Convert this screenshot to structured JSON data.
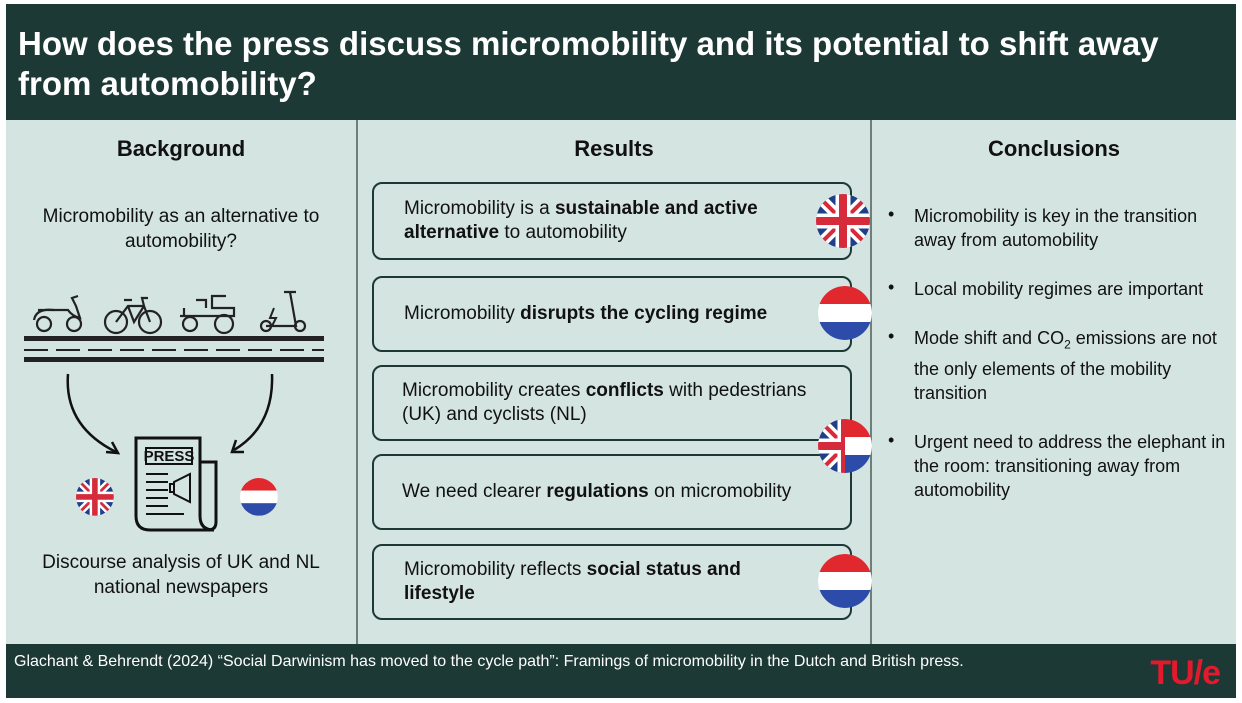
{
  "header": {
    "title": "How does the press discuss micromobility and its potential to shift away from automobility?"
  },
  "background": {
    "title": "Background",
    "question": "Micromobility  as an alternative to automobility?",
    "press_label": "PRESS",
    "analysis": "Discourse analysis of UK and NL national newspapers"
  },
  "results": {
    "title": "Results",
    "items": [
      {
        "pre": "Micromobility is a ",
        "bold": "sustainable and active alternative",
        "post": " to automobility",
        "flag": "uk"
      },
      {
        "pre": "Micromobility  ",
        "bold": "disrupts the cycling regime",
        "post": "",
        "flag": "nl"
      },
      {
        "pre": "Micromobility  creates ",
        "bold": "conflicts",
        "post": " with pedestrians (UK) and cyclists (NL)",
        "flag": "uk-nl"
      },
      {
        "pre": "We need clearer ",
        "bold": "regulations",
        "post": " on micromobility",
        "flag": ""
      },
      {
        "pre": "Micromobility  reflects ",
        "bold": "social status and lifestyle",
        "post": "",
        "flag": "nl"
      }
    ]
  },
  "conclusions": {
    "title": "Conclusions",
    "items": [
      {
        "text": "Micromobility is key in the transition away from automobility"
      },
      {
        "text": "Local mobility regimes are important"
      },
      {
        "pre": "Mode shift and CO",
        "sub": "2",
        "post": " emissions are not the only elements of the mobility transition"
      },
      {
        "text": "Urgent need to address the elephant in the room: transitioning away from automobility"
      }
    ]
  },
  "footer": {
    "citation": "Glachant & Behrendt (2024) “Social Darwinism has moved to the cycle path”: Framings of micromobility in the Dutch and British press.",
    "logo": "TU/e"
  },
  "colors": {
    "dark_teal": "#1d3935",
    "panel": "#d4e4e1",
    "logo_red": "#e3192c",
    "nl_red": "#e0282e",
    "nl_blue": "#2d4ba8",
    "uk_blue": "#1f3f8a"
  },
  "icons": [
    "scooter-icon",
    "bicycle-icon",
    "mobility-scooter-icon",
    "e-scooter-icon",
    "newspaper-icon",
    "uk-flag-icon",
    "nl-flag-icon",
    "arrow-icon"
  ]
}
